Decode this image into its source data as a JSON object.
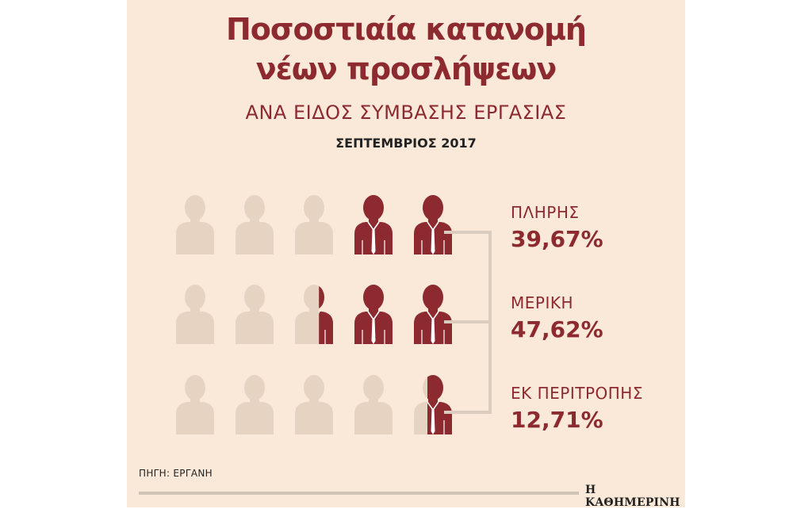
{
  "header": {
    "title_line1": "Ποσοστιαία κατανομή",
    "title_line2": "νέων προσλήψεων",
    "subtitle": "ΑΝΑ ΕΙΔΟΣ ΣΥΜΒΑΣΗΣ ΕΡΓΑΣΙΑΣ",
    "date": "ΣΕΠΤΕΜΒΡΙΟΣ 2017"
  },
  "chart_data": {
    "type": "pictogram",
    "icons_per_row": 5,
    "units": "%",
    "categories": [
      "ΠΛΗΡΗΣ",
      "ΜΕΡΙΚΗ",
      "ΕΚ ΠΕΡΙΤΡΟΠΗΣ"
    ],
    "values": [
      39.67,
      47.62,
      12.71
    ],
    "value_labels": [
      "39,67%",
      "47,62%",
      "12,71%"
    ],
    "colors": {
      "filled": "#8c2a2f",
      "empty": "#e6d3c2",
      "bracket": "#dacdc0"
    }
  },
  "footer": {
    "source": "ΠΗΓΗ: ΕΡΓΑΝΗ",
    "brand": "Η ΚΑΘΗΜΕΡΙΝΗ"
  }
}
